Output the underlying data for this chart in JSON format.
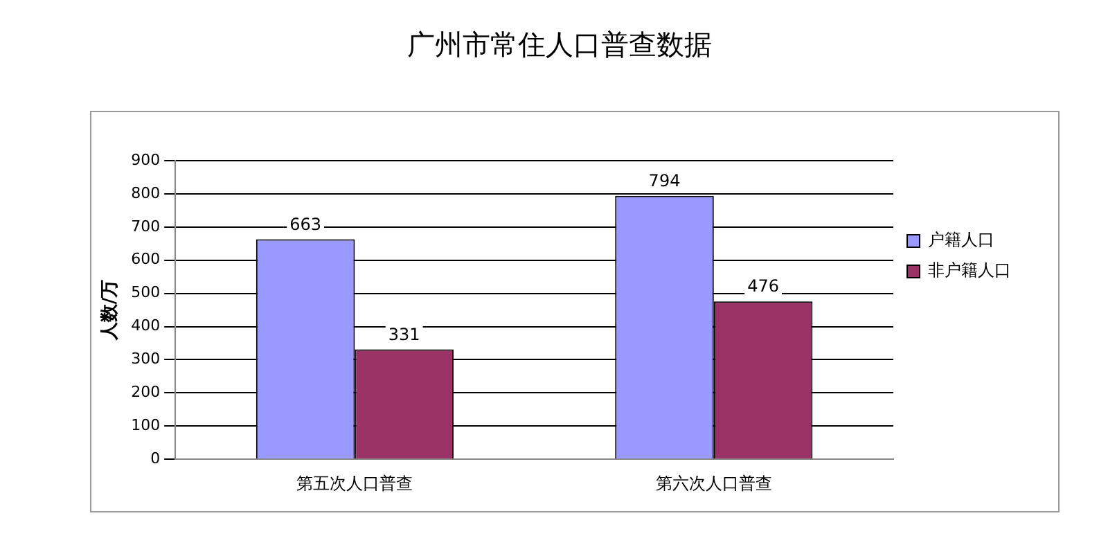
{
  "chart_data": {
    "type": "bar",
    "title": "广州市常住人口普查数据",
    "ylabel": "人数/万",
    "categories": [
      "第五次人口普查",
      "第六次人口普查"
    ],
    "series": [
      {
        "name": "户籍人口",
        "color": "#9999ff",
        "values": [
          663,
          794
        ]
      },
      {
        "name": "非户籍人口",
        "color": "#993366",
        "values": [
          331,
          476
        ]
      }
    ],
    "ylim": [
      0,
      900
    ],
    "yticks": [
      0,
      100,
      200,
      300,
      400,
      500,
      600,
      700,
      800,
      900
    ],
    "grid": "y",
    "legend": "right",
    "data_labels": true
  }
}
